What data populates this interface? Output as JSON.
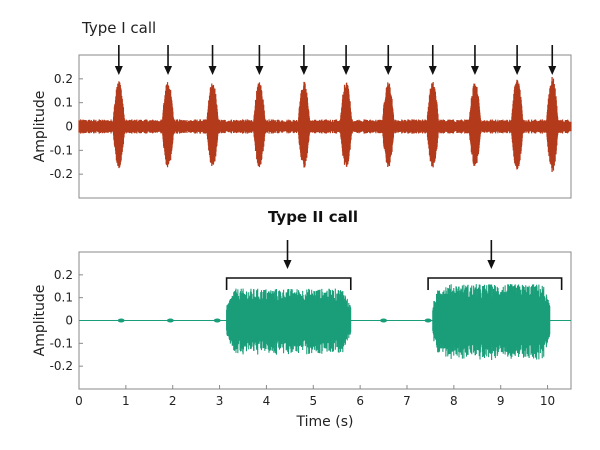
{
  "chart_data": [
    {
      "type": "line",
      "title": "Type I call",
      "xlabel": "",
      "ylabel": "Amplitude",
      "xlim": [
        0,
        10.5
      ],
      "ylim": [
        -0.3,
        0.3
      ],
      "yticks": [
        0.2,
        0.1,
        0,
        -0.1,
        -0.2
      ],
      "ytick_labels": [
        "0.2",
        "0.1",
        "0",
        "-0.1",
        "-0.2"
      ],
      "series": [
        {
          "color": "#b33a1a",
          "baseline_amplitude": 0.03,
          "pulse_times": [
            0.85,
            1.9,
            2.85,
            3.85,
            4.8,
            5.7,
            6.6,
            7.55,
            8.45,
            9.35,
            10.1
          ],
          "pulse_peak_amplitudes": [
            0.19,
            0.19,
            0.19,
            0.19,
            0.19,
            0.19,
            0.19,
            0.19,
            0.19,
            0.2,
            0.21
          ]
        }
      ],
      "arrow_times": [
        0.85,
        1.9,
        2.85,
        3.85,
        4.8,
        5.7,
        6.6,
        7.55,
        8.45,
        9.35,
        10.1
      ],
      "grid": false
    },
    {
      "type": "line",
      "title": "Type II call",
      "xlabel": "Time (s)",
      "ylabel": "Amplitude",
      "xlim": [
        0,
        10.5
      ],
      "ylim": [
        -0.3,
        0.3
      ],
      "xticks": [
        0,
        1,
        2,
        3,
        4,
        5,
        6,
        7,
        8,
        9,
        10
      ],
      "xtick_labels": [
        "0",
        "1",
        "2",
        "3",
        "4",
        "5",
        "6",
        "7",
        "8",
        "9",
        "10"
      ],
      "yticks": [
        0.2,
        0.1,
        0,
        -0.1,
        -0.2
      ],
      "ytick_labels": [
        "0.2",
        "0.1",
        "0",
        "-0.1",
        "-0.2"
      ],
      "series": [
        {
          "color": "#1a9e7a",
          "small_blips": [
            0.9,
            1.95,
            2.95,
            6.5,
            7.45
          ],
          "bursts": [
            {
              "start": 3.15,
              "end": 5.8,
              "amplitude": 0.14
            },
            {
              "start": 7.55,
              "end": 10.05,
              "amplitude": 0.16
            }
          ]
        }
      ],
      "brackets": [
        {
          "start": 3.15,
          "end": 5.8,
          "arrow_time": 4.45
        },
        {
          "start": 7.45,
          "end": 10.3,
          "arrow_time": 8.8
        }
      ],
      "grid": false
    }
  ]
}
